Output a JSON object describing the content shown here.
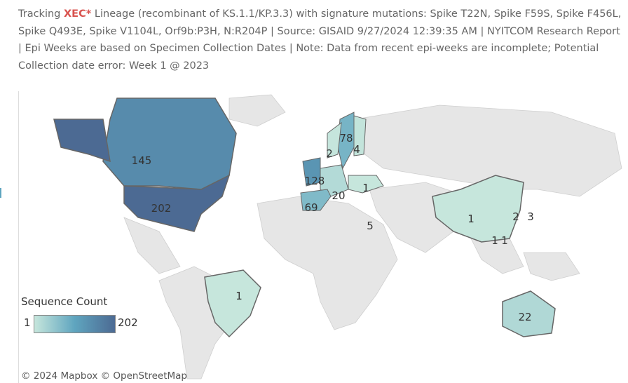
{
  "header": {
    "prefix": "Tracking ",
    "lineage": "XEC*",
    "text": " Lineage (recombinant of KS.1.1/KP.3.3) with signature mutations: Spike T22N, Spike F59S, Spike F456L, Spike Q493E, Spike V1104L, Orf9b:P3H, N:R204P  | Source: GISAID  9/27/2024 12:39:35 AM | NYITCOM Research Report | Epi Weeks are based on Specimen Collection Dates | Note: Data from recent epi-weeks are incomplete; Potential Collection date error: Week 1 @ 2023"
  },
  "legend": {
    "title": "Sequence Count",
    "min": "1",
    "max": "202",
    "min_value": 1,
    "max_value": 202,
    "colors": [
      "#c6e6dc",
      "#5fa5bf",
      "#4c6a93"
    ]
  },
  "attribution": "© 2024 Mapbox  © OpenStreetMap",
  "countries": [
    {
      "name": "Canada",
      "label": "145",
      "value": 145
    },
    {
      "name": "United States",
      "label": "202",
      "value": 202
    },
    {
      "name": "Brazil",
      "label": "1",
      "value": 1
    },
    {
      "name": "Australia",
      "label": "22",
      "value": 22
    },
    {
      "name": "Sweden",
      "label": "78",
      "value": 78
    },
    {
      "name": "Norway",
      "label": "2",
      "value": 2
    },
    {
      "name": "Finland",
      "label": "4",
      "value": 4
    },
    {
      "name": "United Kingdom",
      "label": "128",
      "value": 128
    },
    {
      "name": "Austria",
      "label": "20",
      "value": 20
    },
    {
      "name": "Ukraine",
      "label": "1",
      "value": 1
    },
    {
      "name": "Spain",
      "label": "69",
      "value": 69
    },
    {
      "name": "Israel",
      "label": "5",
      "value": 5
    },
    {
      "name": "China",
      "label": "1",
      "value": 1
    },
    {
      "name": "South Korea",
      "label": "2",
      "value": 2
    },
    {
      "name": "Japan",
      "label": "3",
      "value": 3
    },
    {
      "name": "Hong Kong",
      "label": "1",
      "value": 1
    },
    {
      "name": "Taiwan",
      "label": "1",
      "value": 1
    }
  ]
}
